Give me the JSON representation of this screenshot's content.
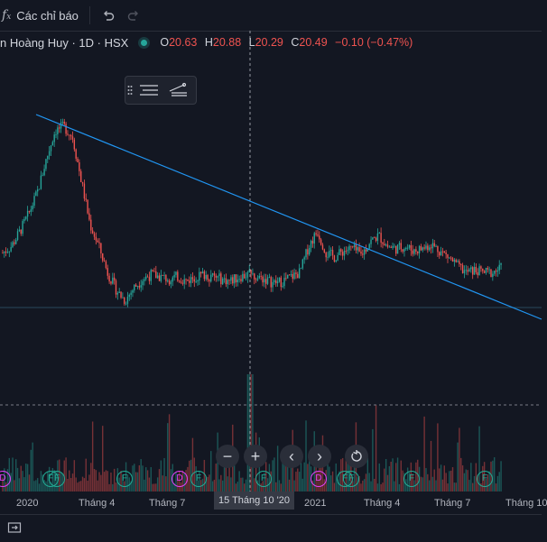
{
  "toolbar": {
    "indicators_label": "Các chỉ báo"
  },
  "legend": {
    "symbol_text": "n Hoàng Huy · 1D · HSX",
    "ohlc": {
      "open_key": "O",
      "open": "20.63",
      "high_key": "H",
      "high": "20.88",
      "low_key": "L",
      "low": "20.29",
      "close_key": "C",
      "close": "20.49",
      "change": "−0.10 (−0.47%)"
    }
  },
  "nav_buttons": {
    "zoom_out": "−",
    "zoom_in": "+",
    "scroll_left": "‹",
    "scroll_right": "›"
  },
  "x_axis": {
    "labels": [
      "2020",
      "Tháng 4",
      "Tháng 7",
      "2021",
      "Tháng 4",
      "Tháng 7",
      "Tháng 10"
    ],
    "crosshair_label": "15 Tháng 10 '20"
  },
  "markers": [
    {
      "text": "D",
      "kind": "d"
    },
    {
      "text": "F",
      "kind": "f"
    },
    {
      "text": "F",
      "kind": "f"
    },
    {
      "text": "F",
      "kind": "f"
    },
    {
      "text": "D",
      "kind": "d"
    },
    {
      "text": "F",
      "kind": "f"
    },
    {
      "text": "F",
      "kind": "f"
    },
    {
      "text": "D",
      "kind": "d"
    },
    {
      "text": "F",
      "kind": "f"
    },
    {
      "text": "F",
      "kind": "f"
    },
    {
      "text": "F",
      "kind": "f"
    },
    {
      "text": "F",
      "kind": "f"
    }
  ],
  "colors": {
    "background": "#131722",
    "up": "#26a69a",
    "down": "#ef5350",
    "trendline": "#2196f3",
    "marker_f": "#22ab94",
    "marker_d": "#e040fb"
  },
  "chart_data": {
    "type": "candlestick",
    "x_labels": [
      "2020",
      "Tháng 4",
      "Tháng 7",
      "2021",
      "Tháng 4",
      "Tháng 7",
      "Tháng 10"
    ],
    "ohlc_last": {
      "open": 20.63,
      "high": 20.88,
      "low": 20.29,
      "close": 20.49,
      "change": -0.1,
      "change_pct": -0.47
    },
    "price_path_relative": [
      0.42,
      0.45,
      0.52,
      0.6,
      0.7,
      0.85,
      0.98,
      1.0,
      0.95,
      0.75,
      0.55,
      0.45,
      0.33,
      0.25,
      0.2,
      0.26,
      0.3,
      0.32,
      0.31,
      0.3,
      0.31,
      0.29,
      0.31,
      0.32,
      0.31,
      0.3,
      0.29,
      0.31,
      0.32,
      0.31,
      0.3,
      0.28,
      0.29,
      0.31,
      0.33,
      0.45,
      0.52,
      0.42,
      0.4,
      0.43,
      0.44,
      0.41,
      0.47,
      0.5,
      0.45,
      0.44,
      0.45,
      0.43,
      0.44,
      0.46,
      0.43,
      0.4,
      0.36,
      0.33,
      0.34,
      0.33,
      0.33,
      0.35
    ],
    "trendline": "descending from the 2020 peak through the 2021 highs",
    "volume": "histogram at the bottom with a spike at the crosshair date"
  }
}
